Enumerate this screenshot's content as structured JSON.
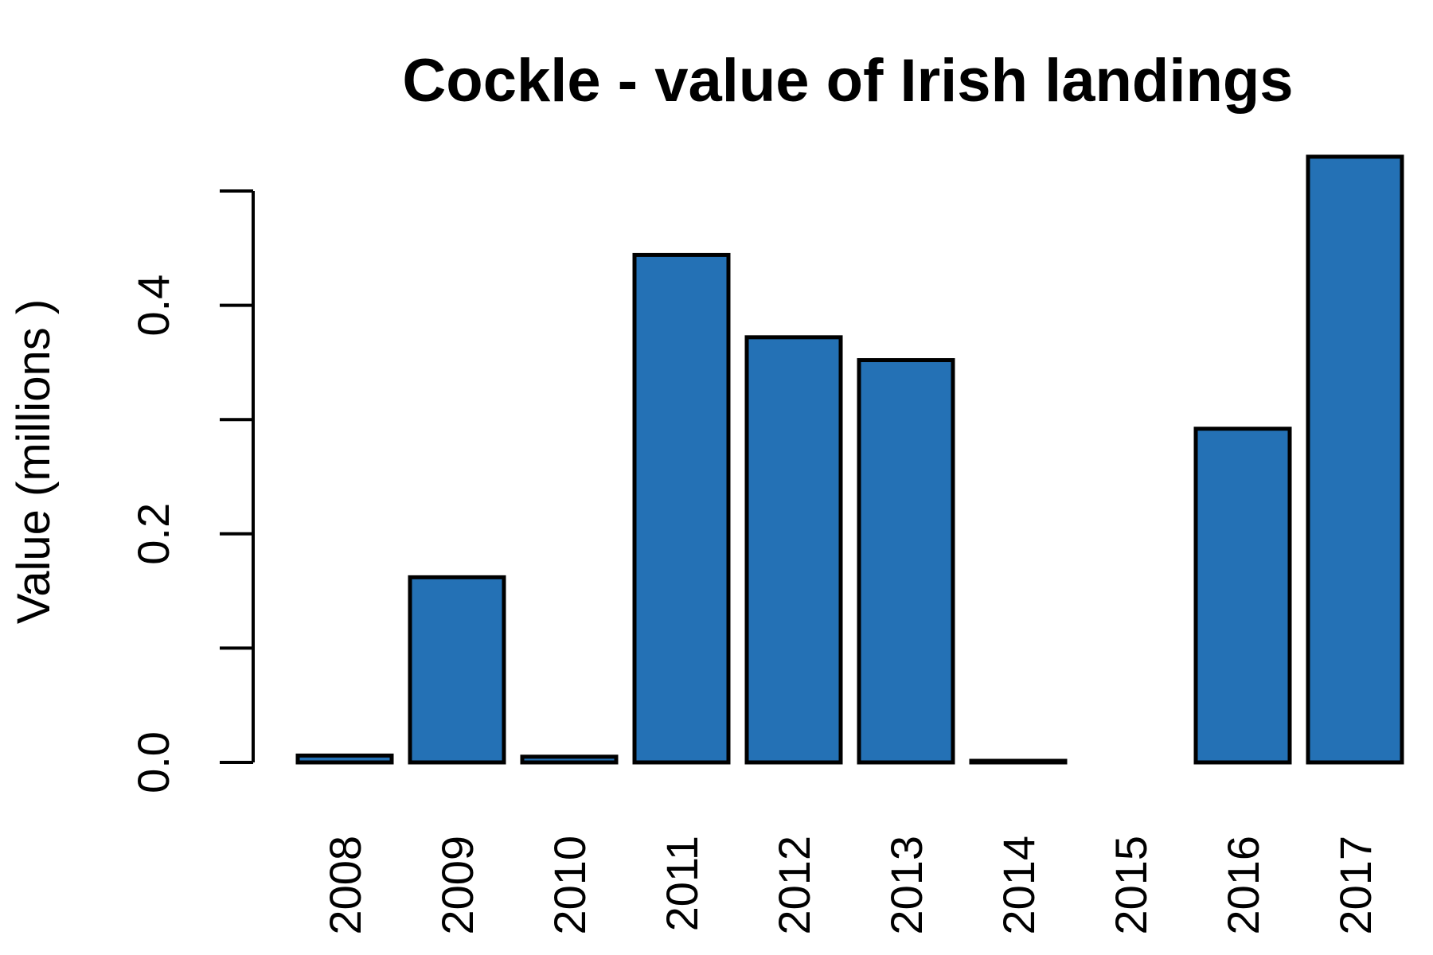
{
  "chart_data": {
    "type": "bar",
    "title": "Cockle - value of Irish landings",
    "xlabel": "",
    "ylabel": "Value (millions )",
    "categories": [
      "2008",
      "2009",
      "2010",
      "2011",
      "2012",
      "2013",
      "2014",
      "2015",
      "2016",
      "2017"
    ],
    "values": [
      0.006,
      0.162,
      0.005,
      0.444,
      0.372,
      0.352,
      0.001,
      0,
      0.292,
      0.53
    ],
    "ylim": [
      0,
      0.5
    ],
    "yticks": [
      0.0,
      0.1,
      0.2,
      0.3,
      0.4,
      0.5
    ],
    "ytick_labels": [
      "0.0",
      "",
      "0.2",
      "",
      "0.4",
      ""
    ],
    "bar_color": "#2471b5",
    "grid": false,
    "legend": "none"
  }
}
